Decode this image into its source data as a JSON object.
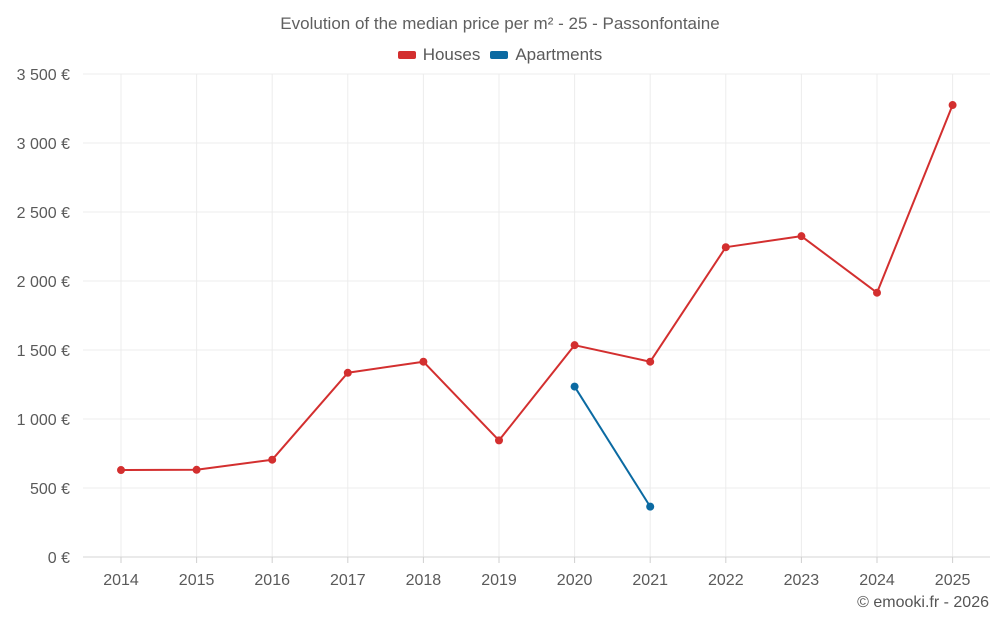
{
  "chart_data": {
    "type": "line",
    "title": "Evolution of the median price per m² - 25 - Passonfontaine",
    "categories": [
      "2014",
      "2015",
      "2016",
      "2017",
      "2018",
      "2019",
      "2020",
      "2021",
      "2022",
      "2023",
      "2024",
      "2025"
    ],
    "series": [
      {
        "name": "Houses",
        "color": "#d32f2f",
        "values": [
          630,
          632,
          705,
          1335,
          1415,
          845,
          1535,
          1415,
          2245,
          2325,
          1915,
          3275
        ]
      },
      {
        "name": "Apartments",
        "color": "#0b6aa2",
        "values": [
          null,
          null,
          null,
          null,
          null,
          null,
          1235,
          365,
          null,
          null,
          null,
          null
        ]
      }
    ],
    "yticks": [
      0,
      500,
      1000,
      1500,
      2000,
      2500,
      3000,
      3500
    ],
    "ytick_labels": [
      "0 €",
      "500 €",
      "1 000 €",
      "1 500 €",
      "2 000 €",
      "2 500 €",
      "3 000 €",
      "3 500 €"
    ],
    "ylim": [
      0,
      3500
    ],
    "xlabel": "",
    "ylabel": "",
    "grid": true,
    "legend_position": "top-center"
  },
  "footer": {
    "credit": "© emooki.fr - 2026"
  }
}
